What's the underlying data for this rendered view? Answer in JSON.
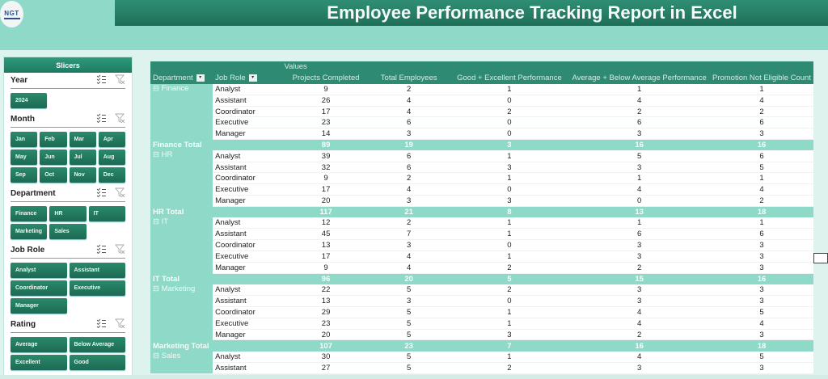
{
  "header": {
    "logo_text": "NGT",
    "title": "Employee Performance Tracking Report in Excel"
  },
  "slicers": {
    "panel_title": "Slicers",
    "groups": [
      {
        "title": "Year",
        "items": [
          "2024"
        ]
      },
      {
        "title": "Month",
        "items": [
          "Jan",
          "Feb",
          "Mar",
          "Apr",
          "May",
          "Jun",
          "Jul",
          "Aug",
          "Sep",
          "Oct",
          "Nov",
          "Dec"
        ]
      },
      {
        "title": "Department",
        "items": [
          "Finance",
          "HR",
          "IT",
          "Marketing",
          "Sales"
        ]
      },
      {
        "title": "Job Role",
        "items": [
          "Analyst",
          "Assistant",
          "Coordinator",
          "Executive",
          "Manager"
        ]
      },
      {
        "title": "Rating",
        "items": [
          "Average",
          "Below Average",
          "Excellent",
          "Good"
        ]
      }
    ],
    "icons": [
      "multi-select-icon",
      "clear-filter-icon"
    ]
  },
  "pivot": {
    "values_label": "Values",
    "columns": [
      "Department",
      "Job Role",
      "Projects Completed",
      "Total Employees",
      "Good + Excellent Performance",
      "Average + Below Average Performance",
      "Promotion Not Eligible Count"
    ],
    "groups": [
      {
        "dept": "Finance",
        "rows": [
          [
            "Analyst",
            "9",
            "2",
            "1",
            "1",
            "1"
          ],
          [
            "Assistant",
            "26",
            "4",
            "0",
            "4",
            "4"
          ],
          [
            "Coordinator",
            "17",
            "4",
            "2",
            "2",
            "2"
          ],
          [
            "Executive",
            "23",
            "6",
            "0",
            "6",
            "6"
          ],
          [
            "Manager",
            "14",
            "3",
            "0",
            "3",
            "3"
          ]
        ],
        "total_label": "Finance Total",
        "total": [
          "89",
          "19",
          "3",
          "16",
          "16"
        ]
      },
      {
        "dept": "HR",
        "rows": [
          [
            "Analyst",
            "39",
            "6",
            "1",
            "5",
            "6"
          ],
          [
            "Assistant",
            "32",
            "6",
            "3",
            "3",
            "5"
          ],
          [
            "Coordinator",
            "9",
            "2",
            "1",
            "1",
            "1"
          ],
          [
            "Executive",
            "17",
            "4",
            "0",
            "4",
            "4"
          ],
          [
            "Manager",
            "20",
            "3",
            "3",
            "0",
            "2"
          ]
        ],
        "total_label": "HR Total",
        "total": [
          "117",
          "21",
          "8",
          "13",
          "18"
        ]
      },
      {
        "dept": "IT",
        "rows": [
          [
            "Analyst",
            "12",
            "2",
            "1",
            "1",
            "1"
          ],
          [
            "Assistant",
            "45",
            "7",
            "1",
            "6",
            "6"
          ],
          [
            "Coordinator",
            "13",
            "3",
            "0",
            "3",
            "3"
          ],
          [
            "Executive",
            "17",
            "4",
            "1",
            "3",
            "3"
          ],
          [
            "Manager",
            "9",
            "4",
            "2",
            "2",
            "3"
          ]
        ],
        "total_label": "IT Total",
        "total": [
          "96",
          "20",
          "5",
          "15",
          "16"
        ]
      },
      {
        "dept": "Marketing",
        "rows": [
          [
            "Analyst",
            "22",
            "5",
            "2",
            "3",
            "3"
          ],
          [
            "Assistant",
            "13",
            "3",
            "0",
            "3",
            "3"
          ],
          [
            "Coordinator",
            "29",
            "5",
            "1",
            "4",
            "5"
          ],
          [
            "Executive",
            "23",
            "5",
            "1",
            "4",
            "4"
          ],
          [
            "Manager",
            "20",
            "5",
            "3",
            "2",
            "3"
          ]
        ],
        "total_label": "Marketing Total",
        "total": [
          "107",
          "23",
          "7",
          "16",
          "18"
        ]
      },
      {
        "dept": "Sales",
        "rows": [
          [
            "Analyst",
            "30",
            "5",
            "1",
            "4",
            "5"
          ],
          [
            "Assistant",
            "27",
            "5",
            "2",
            "3",
            "3"
          ]
        ]
      }
    ]
  },
  "colors": {
    "accent_dark": "#1f6f58",
    "accent_mid": "#2e8a72",
    "accent_light": "#8fd9c8",
    "background": "#dff3ee"
  }
}
